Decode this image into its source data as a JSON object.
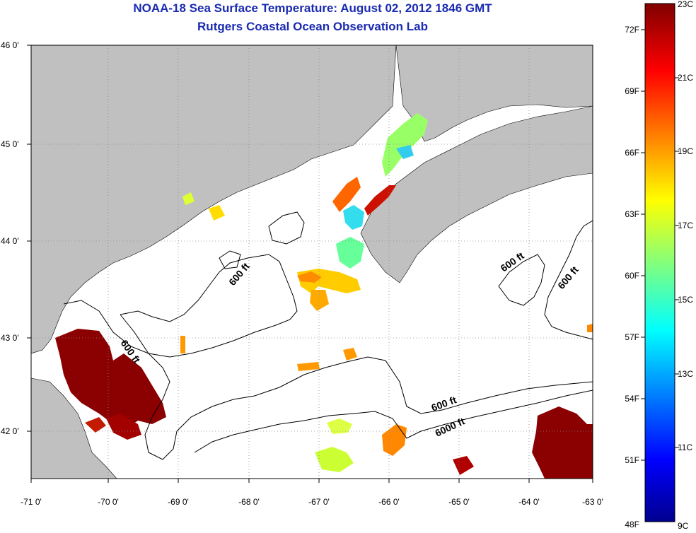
{
  "title": {
    "line1": "NOAA-18 Sea Surface Temperature:  August 02, 2012 1846 GMT",
    "line2": "Rutgers Coastal Ocean Observation Lab"
  },
  "map": {
    "lat_labels": [
      "46 0'",
      "45 0'",
      "44 0'",
      "43 0'",
      "42 0'"
    ],
    "lon_labels": [
      "-71 0'",
      "-70 0'",
      "-69 0'",
      "-68 0'",
      "-67 0'",
      "-66 0'",
      "-65 0'",
      "-64 0'",
      "-63 0'"
    ],
    "contour_labels": [
      "600 ft",
      "600 ft",
      "600 ft",
      "600 ft",
      "600 ft",
      "6000 ft"
    ],
    "colors": {
      "land": "#c0c0c0",
      "ocean_no_data": "#ffffff",
      "contour": "#000000"
    }
  },
  "colorbar": {
    "celsius_labels": [
      "23C",
      "21C",
      "19C",
      "17C",
      "15C",
      "13C",
      "11C",
      "9C"
    ],
    "fahrenheit_labels": [
      "72F",
      "69F",
      "66F",
      "63F",
      "60F",
      "57F",
      "54F",
      "51F",
      "48F"
    ],
    "colormap": "jet"
  }
}
